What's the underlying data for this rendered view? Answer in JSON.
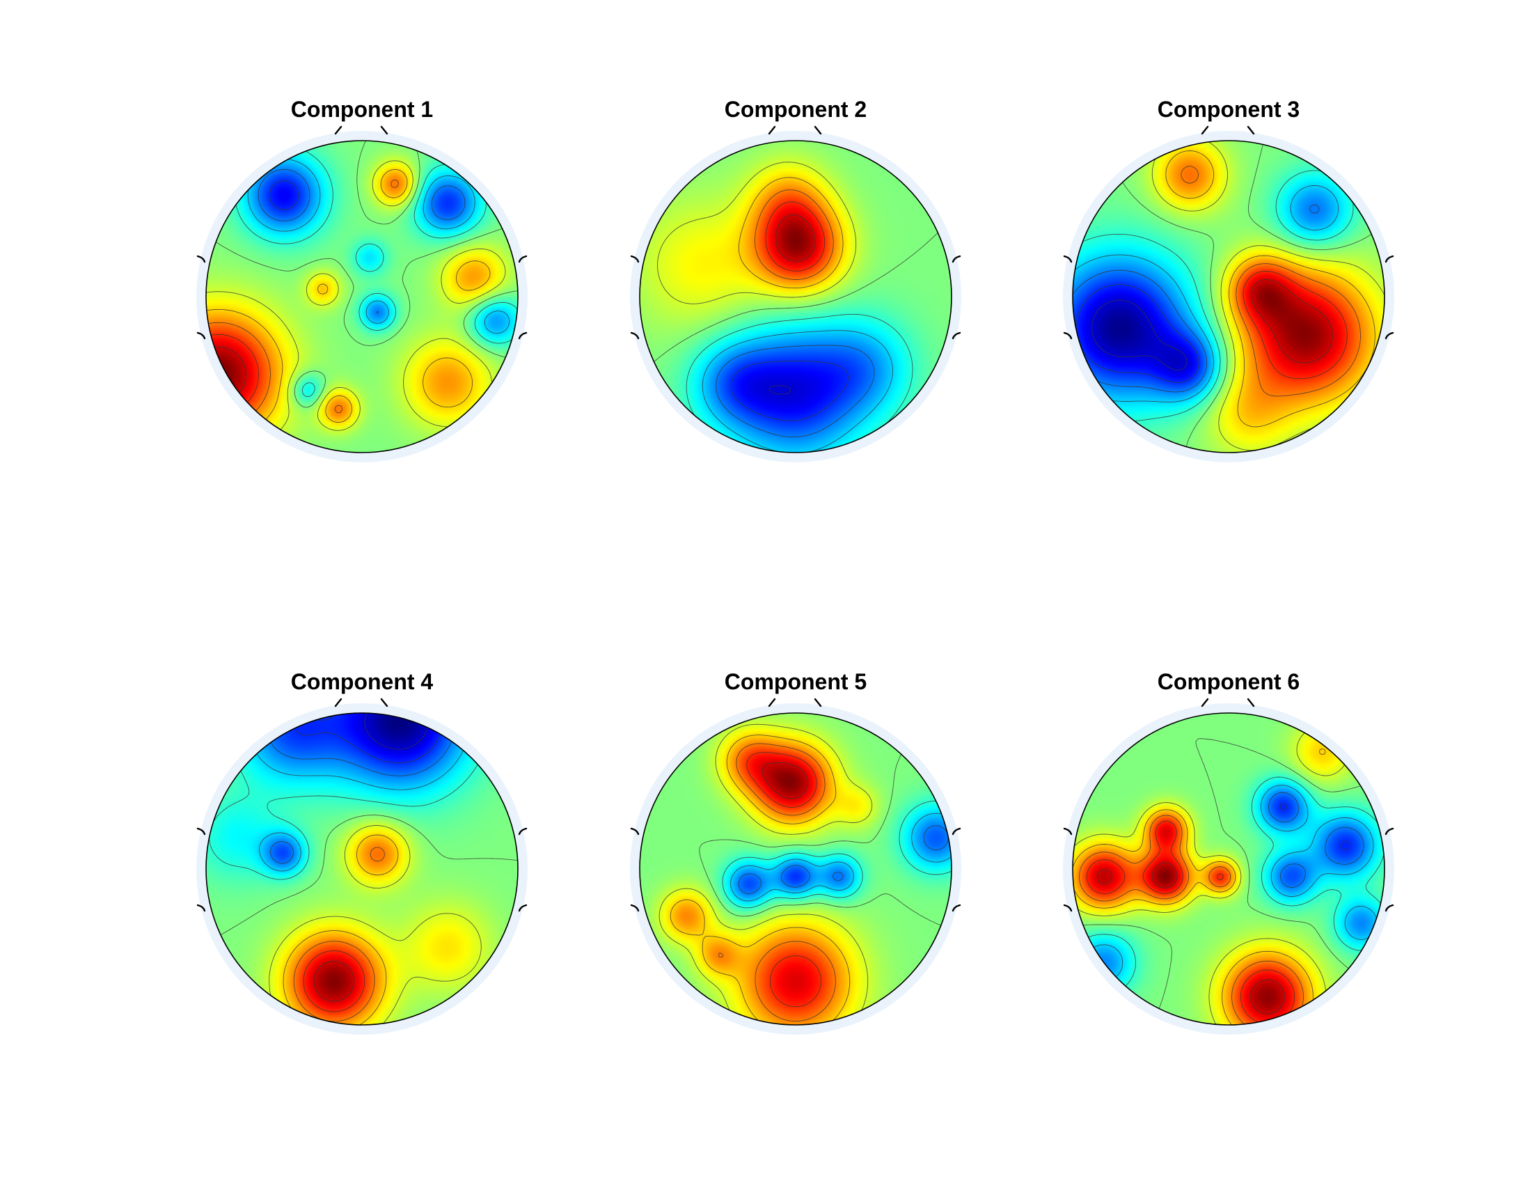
{
  "figure": {
    "colormap": "jet",
    "contour_lines": true,
    "grid_rows": 2,
    "grid_cols": 3
  },
  "chart_data": [
    {
      "type": "heatmap",
      "title": "Component 1",
      "blobs": [
        {
          "x": -0.92,
          "y": -0.5,
          "amp": 1.0,
          "s": 0.28
        },
        {
          "x": -0.5,
          "y": 0.65,
          "amp": -0.75,
          "s": 0.18
        },
        {
          "x": 0.55,
          "y": 0.6,
          "amp": -0.65,
          "s": 0.15
        },
        {
          "x": 0.22,
          "y": 0.72,
          "amp": 0.55,
          "s": 0.1
        },
        {
          "x": 0.72,
          "y": 0.12,
          "amp": 0.45,
          "s": 0.15
        },
        {
          "x": 0.1,
          "y": -0.1,
          "amp": -0.5,
          "s": 0.08
        },
        {
          "x": 0.85,
          "y": -0.15,
          "amp": -0.5,
          "s": 0.12
        },
        {
          "x": 0.55,
          "y": -0.55,
          "amp": 0.45,
          "s": 0.2
        },
        {
          "x": -0.15,
          "y": -0.72,
          "amp": 0.5,
          "s": 0.09
        },
        {
          "x": -0.25,
          "y": 0.05,
          "amp": 0.35,
          "s": 0.08
        },
        {
          "x": 0.05,
          "y": 0.25,
          "amp": -0.3,
          "s": 0.08
        },
        {
          "x": -0.35,
          "y": -0.6,
          "amp": -0.35,
          "s": 0.08
        }
      ]
    },
    {
      "type": "heatmap",
      "title": "Component 2",
      "blobs": [
        {
          "x": 0.02,
          "y": 0.32,
          "amp": 1.0,
          "s": 0.2
        },
        {
          "x": -0.05,
          "y": 0.62,
          "amp": 0.4,
          "s": 0.18
        },
        {
          "x": 0.0,
          "y": -0.62,
          "amp": -0.85,
          "s": 0.3
        },
        {
          "x": -0.4,
          "y": -0.55,
          "amp": -0.45,
          "s": 0.2
        },
        {
          "x": 0.45,
          "y": -0.45,
          "amp": -0.4,
          "s": 0.22
        },
        {
          "x": -0.6,
          "y": 0.2,
          "amp": 0.3,
          "s": 0.3
        }
      ]
    },
    {
      "type": "heatmap",
      "title": "Component 3",
      "blobs": [
        {
          "x": -0.7,
          "y": -0.2,
          "amp": -1.0,
          "s": 0.32
        },
        {
          "x": -0.25,
          "y": -0.45,
          "amp": -0.6,
          "s": 0.16
        },
        {
          "x": 0.5,
          "y": -0.25,
          "amp": 1.0,
          "s": 0.3
        },
        {
          "x": 0.2,
          "y": 0.05,
          "amp": 0.6,
          "s": 0.15
        },
        {
          "x": -0.25,
          "y": 0.78,
          "amp": 0.55,
          "s": 0.16
        },
        {
          "x": 0.55,
          "y": 0.55,
          "amp": -0.55,
          "s": 0.17
        },
        {
          "x": 0.12,
          "y": -0.75,
          "amp": 0.3,
          "s": 0.2
        }
      ]
    },
    {
      "type": "heatmap",
      "title": "Component 4",
      "blobs": [
        {
          "x": 0.25,
          "y": 0.95,
          "amp": -1.0,
          "s": 0.3
        },
        {
          "x": -0.45,
          "y": 0.9,
          "amp": -0.6,
          "s": 0.25
        },
        {
          "x": -0.18,
          "y": -0.72,
          "amp": 1.0,
          "s": 0.22
        },
        {
          "x": 0.1,
          "y": 0.1,
          "amp": 0.55,
          "s": 0.14
        },
        {
          "x": -0.5,
          "y": 0.1,
          "amp": -0.55,
          "s": 0.1
        },
        {
          "x": 0.55,
          "y": -0.5,
          "amp": 0.3,
          "s": 0.2
        },
        {
          "x": -0.8,
          "y": 0.2,
          "amp": -0.25,
          "s": 0.2
        }
      ]
    },
    {
      "type": "heatmap",
      "title": "Component 5",
      "blobs": [
        {
          "x": -0.02,
          "y": 0.55,
          "amp": 1.0,
          "s": 0.18
        },
        {
          "x": -0.3,
          "y": 0.7,
          "amp": 0.5,
          "s": 0.14
        },
        {
          "x": 0.0,
          "y": -0.72,
          "amp": 0.85,
          "s": 0.26
        },
        {
          "x": -0.3,
          "y": -0.1,
          "amp": -0.65,
          "s": 0.11
        },
        {
          "x": 0.0,
          "y": -0.05,
          "amp": -0.7,
          "s": 0.1
        },
        {
          "x": 0.28,
          "y": -0.05,
          "amp": -0.55,
          "s": 0.1
        },
        {
          "x": 0.9,
          "y": 0.2,
          "amp": -0.6,
          "s": 0.15
        },
        {
          "x": -0.7,
          "y": -0.3,
          "amp": 0.5,
          "s": 0.12
        },
        {
          "x": -0.5,
          "y": -0.55,
          "amp": 0.4,
          "s": 0.1
        },
        {
          "x": 0.4,
          "y": 0.4,
          "amp": 0.25,
          "s": 0.1
        }
      ]
    },
    {
      "type": "heatmap",
      "title": "Component 6",
      "blobs": [
        {
          "x": -0.8,
          "y": -0.05,
          "amp": 0.9,
          "s": 0.15
        },
        {
          "x": -0.4,
          "y": -0.05,
          "amp": 1.0,
          "s": 0.12
        },
        {
          "x": -0.4,
          "y": 0.25,
          "amp": 0.8,
          "s": 0.1
        },
        {
          "x": -0.05,
          "y": -0.05,
          "amp": 0.7,
          "s": 0.08
        },
        {
          "x": 0.25,
          "y": -0.82,
          "amp": 1.0,
          "s": 0.2
        },
        {
          "x": 0.35,
          "y": 0.4,
          "amp": -0.7,
          "s": 0.12
        },
        {
          "x": 0.75,
          "y": 0.15,
          "amp": -0.7,
          "s": 0.15
        },
        {
          "x": 0.4,
          "y": -0.05,
          "amp": -0.6,
          "s": 0.12
        },
        {
          "x": -0.8,
          "y": -0.6,
          "amp": -0.5,
          "s": 0.14
        },
        {
          "x": 0.85,
          "y": -0.35,
          "amp": -0.5,
          "s": 0.12
        },
        {
          "x": 0.6,
          "y": 0.75,
          "amp": 0.35,
          "s": 0.14
        }
      ]
    }
  ]
}
